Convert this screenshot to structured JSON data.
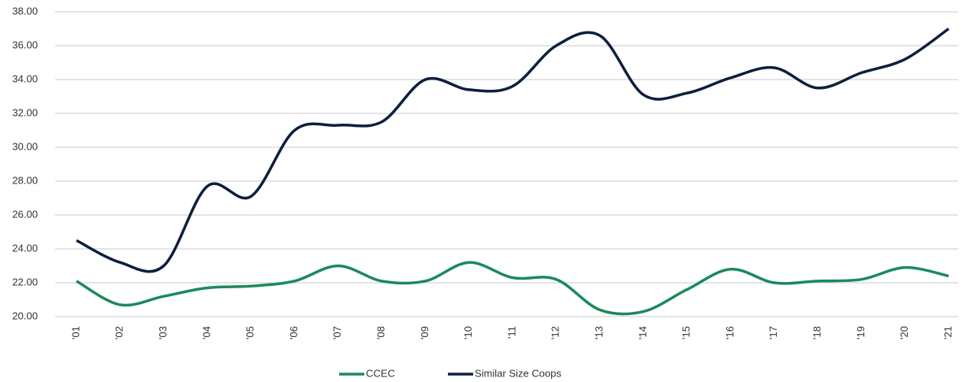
{
  "chart_data": {
    "type": "line",
    "categories": [
      "'01",
      "'02",
      "'03",
      "'04",
      "'05",
      "'06",
      "'07",
      "'08",
      "'09",
      "'10",
      "'11",
      "'12",
      "'13",
      "'14",
      "'15",
      "'16",
      "'17",
      "'18",
      "'19",
      "'20",
      "'21"
    ],
    "series": [
      {
        "name": "CCEC",
        "color": "#1b8a5a",
        "values": [
          22.1,
          20.7,
          21.2,
          21.7,
          21.8,
          22.1,
          23.0,
          22.1,
          22.1,
          23.2,
          22.3,
          22.2,
          20.4,
          20.3,
          21.6,
          22.8,
          22.0,
          22.1,
          22.2,
          22.9,
          22.4
        ]
      },
      {
        "name": "Similar Size Coops",
        "color": "#0d1f3c",
        "values": [
          24.5,
          23.2,
          23.0,
          27.7,
          27.1,
          31.0,
          31.3,
          31.5,
          34.0,
          33.4,
          33.6,
          36.0,
          36.6,
          33.1,
          33.2,
          34.1,
          34.7,
          33.5,
          34.4,
          35.2,
          37.0
        ]
      }
    ],
    "ylim": [
      20,
      38
    ],
    "yticks": [
      {
        "value": 20,
        "label": "20.00"
      },
      {
        "value": 22,
        "label": "22.00"
      },
      {
        "value": 24,
        "label": "24.00"
      },
      {
        "value": 26,
        "label": "26.00"
      },
      {
        "value": 28,
        "label": "28.00"
      },
      {
        "value": 30,
        "label": "30.00"
      },
      {
        "value": 32,
        "label": "32.00"
      },
      {
        "value": 34,
        "label": "34.00"
      },
      {
        "value": 36,
        "label": "36.00"
      },
      {
        "value": 38,
        "label": "38.00"
      }
    ],
    "grid": true,
    "legend": "bottom"
  }
}
